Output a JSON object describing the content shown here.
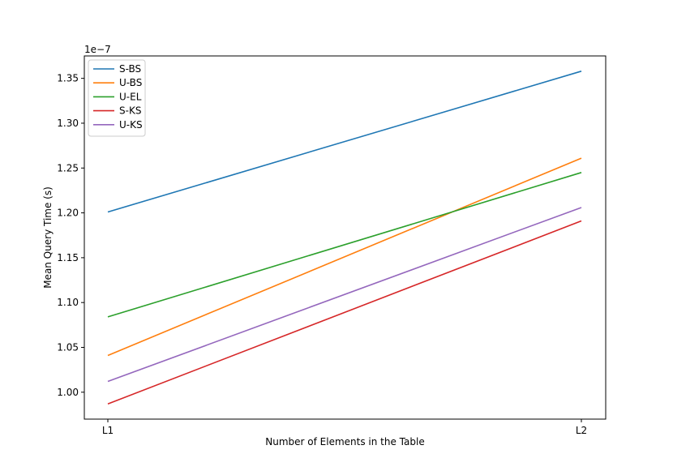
{
  "chart_data": {
    "type": "line",
    "title": "",
    "xlabel": "Number of Elements in the Table",
    "ylabel": "Mean Query Time (s)",
    "offset_label": "1e−7",
    "categories": [
      "L1",
      "L2"
    ],
    "yticks": [
      "1.00",
      "1.05",
      "1.10",
      "1.15",
      "1.20",
      "1.25",
      "1.30",
      "1.35"
    ],
    "ylim": [
      0.97,
      1.375
    ],
    "legend_position": "top-left",
    "grid": false,
    "series": [
      {
        "name": "S-BS",
        "color": "#1f77b4",
        "values": [
          1.201,
          1.358
        ]
      },
      {
        "name": "U-BS",
        "color": "#ff7f0e",
        "values": [
          1.041,
          1.261
        ]
      },
      {
        "name": "U-EL",
        "color": "#2ca02c",
        "values": [
          1.084,
          1.245
        ]
      },
      {
        "name": "S-KS",
        "color": "#d62728",
        "values": [
          0.987,
          1.191
        ]
      },
      {
        "name": "U-KS",
        "color": "#9467bd",
        "values": [
          1.012,
          1.206
        ]
      }
    ]
  }
}
